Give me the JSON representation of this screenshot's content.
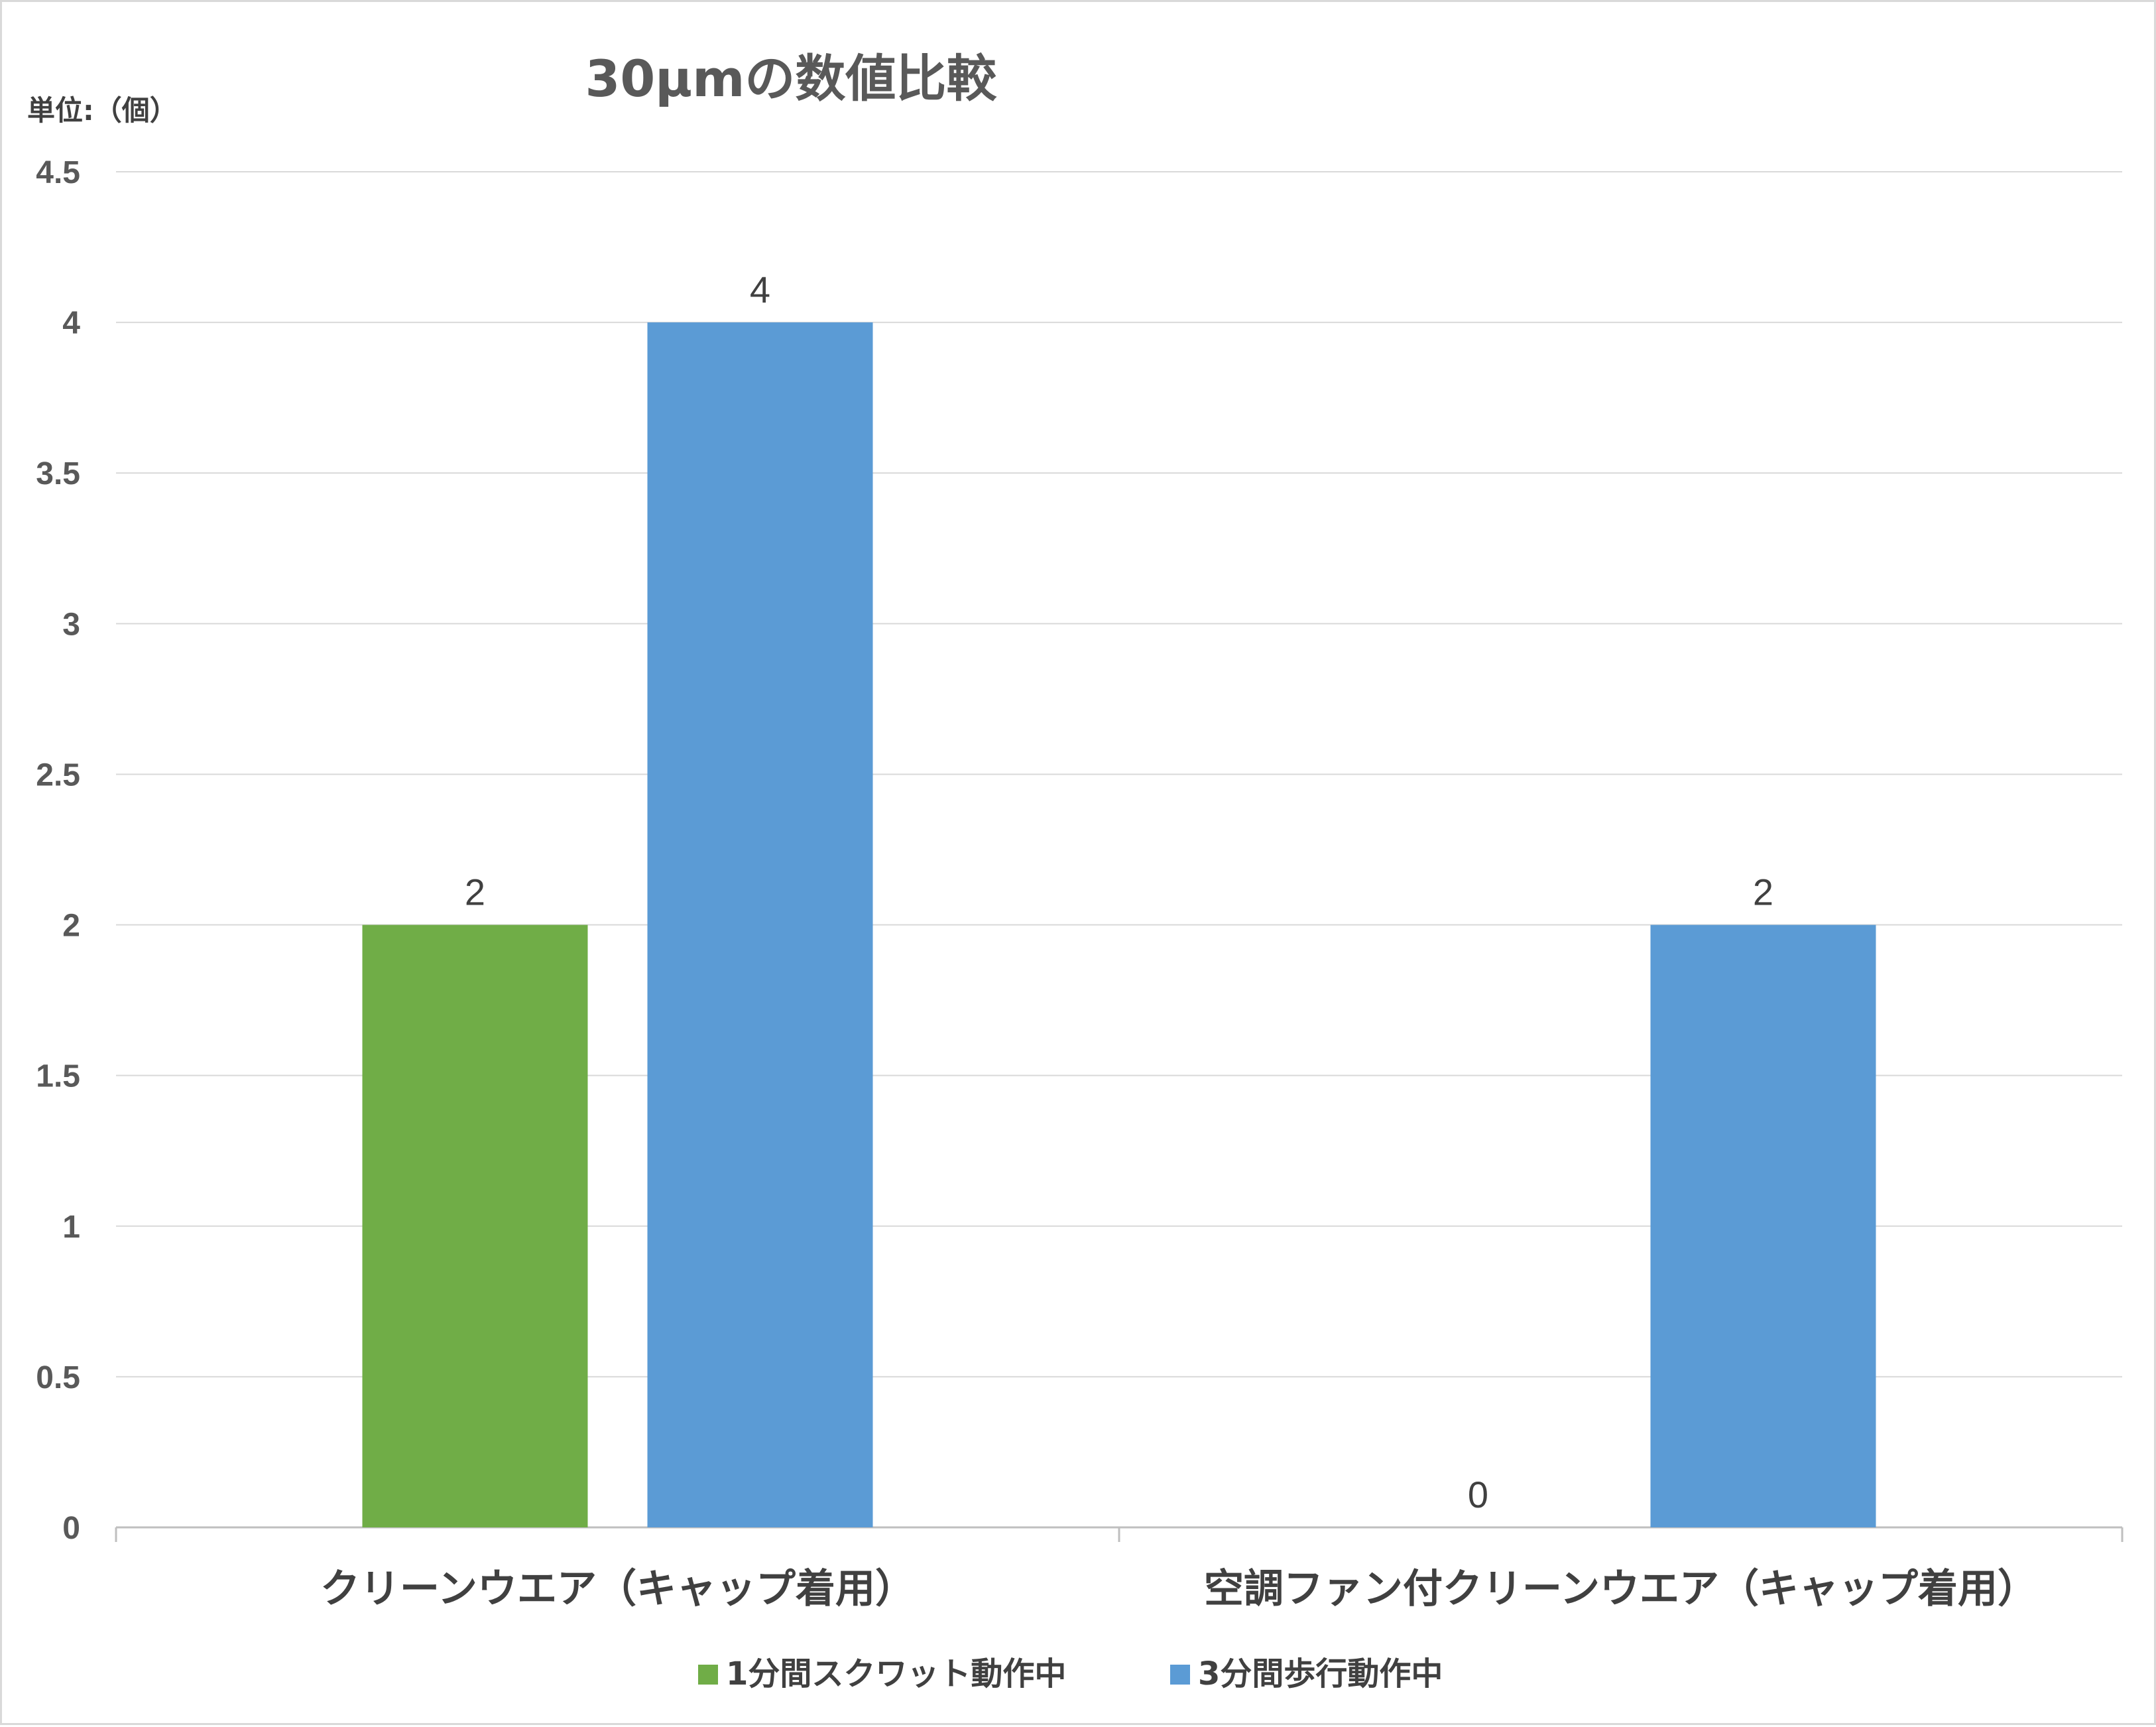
{
  "chart_data": {
    "type": "bar",
    "title": "30μmの数値比較",
    "unit_label": "単位:（個）",
    "categories": [
      "クリーンウエア（キャップ着用）",
      "空調ファン付クリーンウエア（キャップ着用）"
    ],
    "series": [
      {
        "name": "1分間スクワット動作中",
        "values": [
          2,
          0
        ],
        "color": "#70ad47"
      },
      {
        "name": "3分間歩行動作中",
        "values": [
          4,
          2
        ],
        "color": "#5b9bd5"
      }
    ],
    "ylim": [
      0,
      4.5
    ],
    "yticks": [
      "0",
      "0.5",
      "1",
      "1.5",
      "2",
      "2.5",
      "3",
      "3.5",
      "4",
      "4.5"
    ],
    "grid": true,
    "legend_position": "bottom",
    "data_labels": true,
    "gridline_color": "#d9d9d9",
    "label_color": "#404040"
  }
}
